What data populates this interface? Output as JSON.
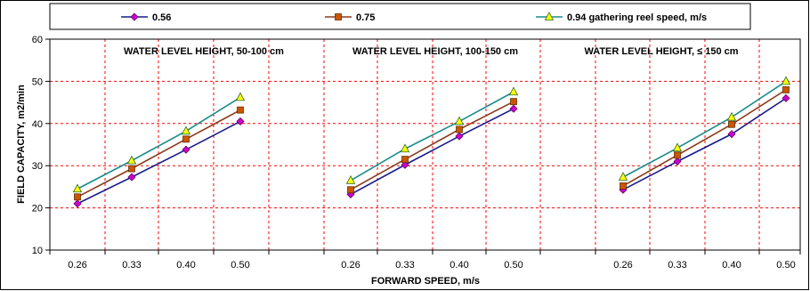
{
  "chart_data": {
    "type": "line",
    "xlabel": "FORWARD SPEED, m/s",
    "ylabel": "FIELD CAPACITY, m2/min",
    "ylim": [
      10,
      60
    ],
    "yticks": [
      "10",
      "20",
      "30",
      "40",
      "50",
      "60"
    ],
    "grid": true,
    "legend_position": "top",
    "categories": [
      "0.26",
      "0.33",
      "0.40",
      "0.50"
    ],
    "legend": [
      {
        "label": "0.56",
        "color": "#cc00cc",
        "marker": "diamond",
        "line_color": "#1a1a8c"
      },
      {
        "label": "0.75",
        "color": "#cc5500",
        "marker": "square",
        "line_color": "#8b3a1a"
      },
      {
        "label": "0.94 gathering reel speed, m/s",
        "color": "#ffff00",
        "marker": "triangle",
        "line_color": "#1a8c8c"
      }
    ],
    "panels": [
      {
        "label": "WATER LEVEL HEIGHT, 50-100 cm",
        "series": [
          {
            "name": "0.56",
            "values": [
              21.0,
              27.3,
              33.8,
              40.5
            ]
          },
          {
            "name": "0.75",
            "values": [
              22.6,
              29.3,
              36.3,
              43.2
            ]
          },
          {
            "name": "0.94 gathering reel speed, m/s",
            "values": [
              24.5,
              31.2,
              38.2,
              46.2
            ]
          }
        ]
      },
      {
        "label": "WATER LEVEL HEIGHT, 100-150 cm",
        "series": [
          {
            "name": "0.56",
            "values": [
              23.2,
              30.2,
              37.0,
              43.5
            ]
          },
          {
            "name": "0.75",
            "values": [
              24.3,
              31.5,
              38.6,
              45.2
            ]
          },
          {
            "name": "0.94 gathering reel speed, m/s",
            "values": [
              26.5,
              34.0,
              40.5,
              47.5
            ]
          }
        ]
      },
      {
        "label": "WATER LEVEL HEIGHT, ≤ 150 cm",
        "series": [
          {
            "name": "0.56",
            "values": [
              24.3,
              31.0,
              37.5,
              46.0
            ]
          },
          {
            "name": "0.75",
            "values": [
              25.2,
              32.5,
              39.8,
              48.0
            ]
          },
          {
            "name": "0.94 gathering reel speed, m/s",
            "values": [
              27.3,
              34.2,
              41.5,
              50.0
            ]
          }
        ]
      }
    ]
  }
}
